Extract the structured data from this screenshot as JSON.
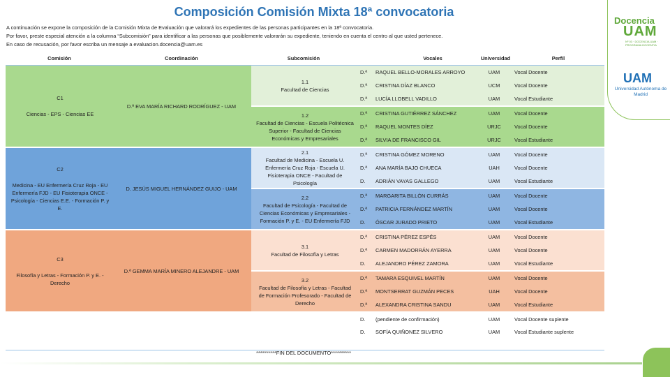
{
  "title": "Composición Comisión Mixta 18ª convocatoria",
  "intro": [
    "A continuación se expone la composición de la Comisión Mixta de Evaluación que valorará los expedientes de las personas participantes en la 18ª convocatoria.",
    "Por favor, preste especial atención a la columna “Subcomisión” para identificar a las personas que posiblemente valorarán su expediente, teniendo en cuenta el centro al que usted pertenece.",
    "En caso de recusación, por favor escriba un mensaje a evaluacion.docencia@uam.es"
  ],
  "headers": {
    "comision": "Comisión",
    "coordinacion": "Coordinación",
    "subcomision": "Subcomisión",
    "vocales": "Vocales",
    "universidad": "Universidad",
    "perfil": "Perfil"
  },
  "groups": [
    {
      "code": "C1",
      "name": "Ciencias - EPS - Ciencias EE",
      "coordinacion": "D.ª EVA MARÍA RICHARD RODRÍGUEZ - UAM",
      "subs": [
        {
          "code": "1.1",
          "name": "Facultad de Ciencias",
          "vocales": [
            {
              "trat": "D.ª",
              "nombre": "RAQUEL BELLO-MORALES ARROYO",
              "univ": "UAM",
              "perfil": "Vocal Docente"
            },
            {
              "trat": "D.ª",
              "nombre": "CRISTINA DÍAZ BLANCO",
              "univ": "UCM",
              "perfil": "Vocal Docente"
            },
            {
              "trat": "D.ª",
              "nombre": "LUCÍA LLOBELL VADILLO",
              "univ": "UAM",
              "perfil": "Vocal Estudiante"
            }
          ]
        },
        {
          "code": "1.2",
          "name": "Facultad de Ciencias - Escuela Politécnica Superior - Facultad de Ciencias Económicas y Empresariales",
          "vocales": [
            {
              "trat": "D.ª",
              "nombre": "CRISTINA GUTIÉRREZ SÁNCHEZ",
              "univ": "UAM",
              "perfil": "Vocal Docente"
            },
            {
              "trat": "D.ª",
              "nombre": "RAQUEL MONTES DÍEZ",
              "univ": "URJC",
              "perfil": "Vocal Docente"
            },
            {
              "trat": "D.ª",
              "nombre": "SILVIA DE FRANCISCO GIL",
              "univ": "URJC",
              "perfil": "Vocal Estudiante"
            }
          ]
        }
      ]
    },
    {
      "code": "C2",
      "name": "Medicina - EU Enfermería Cruz Roja - EU Enfermería FJD - EU Fisioterapia ONCE - Psicología - Ciencias E.E. - Formación P. y E.",
      "coordinacion": "D. JESÚS MIGUEL HERNÁNDEZ GUIJO - UAM",
      "subs": [
        {
          "code": "2.1",
          "name": "Facultad de Medicina - Escuela U. Enfermería Cruz Roja - Escuela U. Fisioterapia ONCE - Facultad de Psicología",
          "vocales": [
            {
              "trat": "D.ª",
              "nombre": "CRISTINA GÓMEZ MORENO",
              "univ": "UAM",
              "perfil": "Vocal Docente"
            },
            {
              "trat": "D.ª",
              "nombre": "ANA MARÍA BAJO CHUECA",
              "univ": "UAH",
              "perfil": "Vocal Docente"
            },
            {
              "trat": "D.",
              "nombre": "ADRIÁN VAYAS GALLEGO",
              "univ": "UAM",
              "perfil": "Vocal Estudiante"
            }
          ]
        },
        {
          "code": "2.2",
          "name": "Facultad de Psicología - Facultad de Ciencias Económicas y Empresariales - Formación P. y E. - EU Enfermería FJD",
          "vocales": [
            {
              "trat": "D.ª",
              "nombre": "MARGARITA BILLÓN CURRÁS",
              "univ": "UAM",
              "perfil": "Vocal Docente"
            },
            {
              "trat": "D.ª",
              "nombre": "PATRICIA FERNÁNDEZ MARTÍN",
              "univ": "UAM",
              "perfil": "Vocal Docente"
            },
            {
              "trat": "D.",
              "nombre": "ÓSCAR JURADO PRIETO",
              "univ": "UAM",
              "perfil": "Vocal Estudiante"
            }
          ]
        }
      ]
    },
    {
      "code": "C3",
      "name": "Filosofía y Letras - Formación P. y E. - Derecho",
      "coordinacion": "D.ª GEMMA MARÍA MINERO ALEJANDRE - UAM",
      "subs": [
        {
          "code": "3.1",
          "name": "Facultad de Filosofía y Letras",
          "vocales": [
            {
              "trat": "D.ª",
              "nombre": "CRISTINA PÉREZ ESPÉS",
              "univ": "UAM",
              "perfil": "Vocal Docente"
            },
            {
              "trat": "D.ª",
              "nombre": "CARMEN MADORRÁN AYERRA",
              "univ": "UAM",
              "perfil": "Vocal Docente"
            },
            {
              "trat": "D.",
              "nombre": "ALEJANDRO PÉREZ ZAMORA",
              "univ": "UAM",
              "perfil": "Vocal Estudiante"
            }
          ]
        },
        {
          "code": "3.2",
          "name": "Facultad de Filosofía y Letras - Facultad de Formación Profesorado - Facultad de Derecho",
          "vocales": [
            {
              "trat": "D.ª",
              "nombre": "TAMARA ESQUIVEL MARTÍN",
              "univ": "UAM",
              "perfil": "Vocal Docente"
            },
            {
              "trat": "D.ª",
              "nombre": "MONTSERRAT GUZMÁN PECES",
              "univ": "UAH",
              "perfil": "Vocal Docente"
            },
            {
              "trat": "D.ª",
              "nombre": "ALEXANDRA CRISTINA SANDU",
              "univ": "UAM",
              "perfil": "Vocal Estudiante"
            }
          ]
        }
      ]
    }
  ],
  "suplentes": [
    {
      "trat": "D.",
      "nombre": "(pendiente de confirmación)",
      "univ": "UAM",
      "perfil": "Vocal Docente suplente"
    },
    {
      "trat": "D.",
      "nombre": "SOFÍA QUIÑONEZ SILVERO",
      "univ": "UAM",
      "perfil": "Vocal Estudiante suplente"
    }
  ],
  "footer": "**********FIN DEL DOCUMENTO**********",
  "logos": {
    "docencia_word": "Docencia",
    "docencia_uam": "UAM",
    "docencia_sub": "Nº 03 · DOCENCIA UAM · PROGRAMA DOCENTIA",
    "uam_word": "UAM",
    "uam_name": "Universidad Autónoma de Madrid"
  },
  "colors": {
    "title": "#2E74B5",
    "c1_main": "#a9d98e",
    "c1_sub1": "#e2f0d9",
    "c1_sub2": "#a9d98e",
    "c2_main": "#6fa3da",
    "c2_sub1": "#dae7f5",
    "c2_sub2": "#8fb6e2",
    "c3_main": "#f0a880",
    "c3_sub1": "#fbe0d1",
    "c3_sub2": "#f4bfa0",
    "accent_green": "#8dc35a"
  }
}
